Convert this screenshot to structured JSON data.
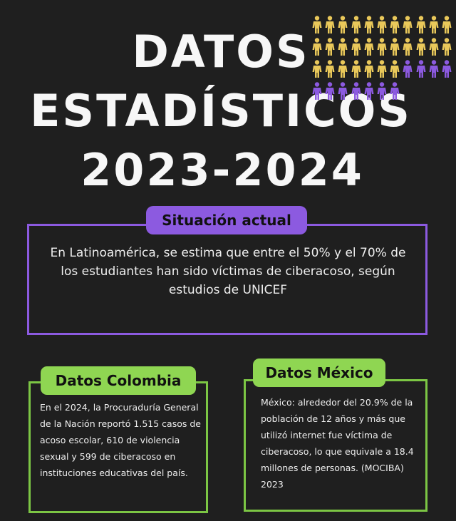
{
  "title": {
    "line1": "DATOS",
    "line2": "ESTADÍSTICOS",
    "line3": "2023-2024"
  },
  "pictogram": {
    "highlighted_count": 29,
    "other_count": 11,
    "per_row": 11,
    "colors": {
      "highlighted": "#e9c85a",
      "other": "#8c5ae0"
    },
    "icon": "person-icon"
  },
  "situacion": {
    "label": "Situación actual",
    "text": "En Latinoamérica, se estima que entre el 50% y el 70% de los estudiantes han sido víctimas de ciberacoso, según estudios de UNICEF"
  },
  "colombia": {
    "label": "Datos Colombia",
    "text": "En el 2024, la Procuraduría General de la Nación reportó 1.515 casos de acoso escolar, 610 de violencia sexual y 599 de ciberacoso en instituciones educativas del país."
  },
  "mexico": {
    "label": "Datos México",
    "text": "México: alrededor del 20.9% de la población de 12 años y más que utilizó internet fue víctima de ciberacoso, lo que equivale a 18.4 millones de personas.  (MOCIBA) 2023"
  },
  "colors": {
    "background": "#1f1f1f",
    "purple": "#8c5ae0",
    "green": "#8fd652",
    "yellow": "#e9c85a"
  }
}
